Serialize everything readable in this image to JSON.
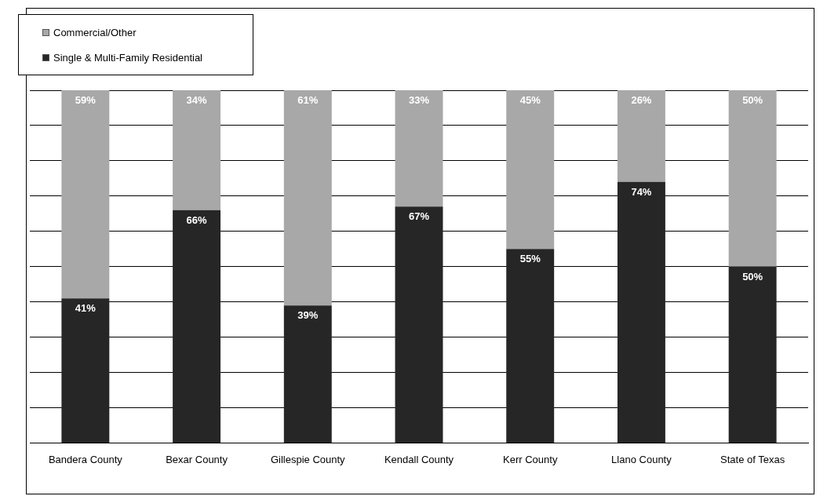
{
  "chart_data": {
    "type": "bar",
    "stacked": true,
    "categories": [
      "Bandera County",
      "Bexar County",
      "Gillespie County",
      "Kendall County",
      "Kerr County",
      "Llano County",
      "State of Texas"
    ],
    "series": [
      {
        "name": "Single & Multi-Family Residential",
        "color": "#262626",
        "values": [
          41,
          66,
          39,
          67,
          55,
          74,
          50
        ],
        "value_labels": [
          "41%",
          "66%",
          "39%",
          "67%",
          "55%",
          "74%",
          "50%"
        ]
      },
      {
        "name": "Commercial/Other",
        "color": "#a8a8a8",
        "values": [
          59,
          34,
          61,
          33,
          45,
          26,
          50
        ],
        "value_labels": [
          "59%",
          "34%",
          "61%",
          "33%",
          "45%",
          "26%",
          "50%"
        ]
      }
    ],
    "tick_labels": "x",
    "grid": "y",
    "legend": "top left"
  }
}
